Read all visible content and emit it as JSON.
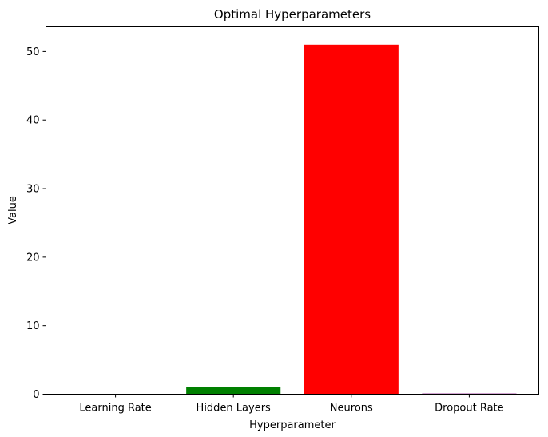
{
  "chart_data": {
    "type": "bar",
    "title": "Optimal Hyperparameters",
    "xlabel": "Hyperparameter",
    "ylabel": "Value",
    "categories": [
      "Learning Rate",
      "Hidden Layers",
      "Neurons",
      "Dropout Rate"
    ],
    "values": [
      0.001,
      1,
      51,
      0.1
    ],
    "colors": [
      "#0000ff",
      "#008000",
      "#ff0000",
      "#800080"
    ],
    "ylim": [
      0,
      53.6
    ],
    "yticks": [
      0,
      10,
      20,
      30,
      40,
      50
    ],
    "grid": false,
    "legend": "none"
  }
}
